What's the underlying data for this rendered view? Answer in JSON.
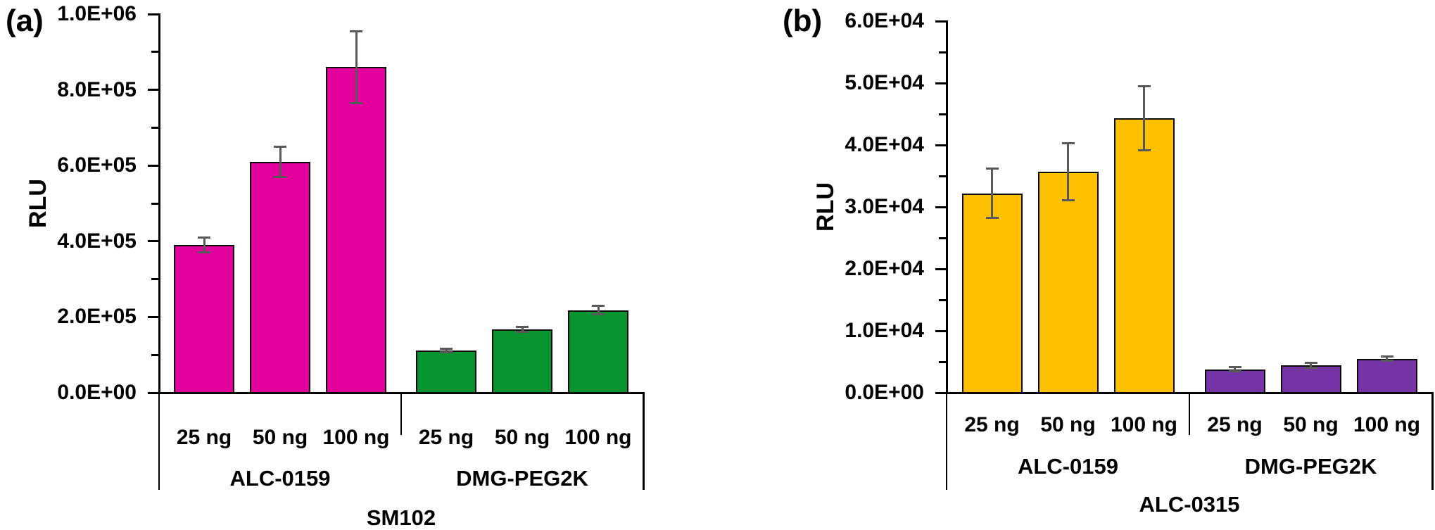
{
  "figure_title": "",
  "chart_data": [
    {
      "panel": "(a)",
      "type": "bar",
      "title": "SM102",
      "ylabel": "RLU",
      "ylim": [
        0,
        1000000
      ],
      "ytick_major": 200000,
      "ytick_minor": 100000,
      "ytick_labels": [
        "0.0E+00",
        "2.0E+05",
        "4.0E+05",
        "6.0E+05",
        "8.0E+05",
        "1.0E+06"
      ],
      "grid": false,
      "legend": "none",
      "group_labels": [
        "ALC-0159",
        "DMG-PEG2K"
      ],
      "categories": [
        "25 ng",
        "50 ng",
        "100 ng",
        "25 ng",
        "50 ng",
        "100 ng"
      ],
      "series": [
        {
          "name": "ALC-0159",
          "color": "#E4009C",
          "values": [
            390000,
            610000,
            860000
          ],
          "errors": [
            20000,
            40000,
            95000
          ]
        },
        {
          "name": "DMG-PEG2K",
          "color": "#089530",
          "values": [
            111000,
            167000,
            218000
          ],
          "errors": [
            5000,
            6000,
            11000
          ]
        }
      ]
    },
    {
      "panel": "(b)",
      "type": "bar",
      "title": "ALC-0315",
      "ylabel": "RLU",
      "ylim": [
        0,
        60000
      ],
      "ytick_major": 10000,
      "ytick_minor": 5000,
      "ytick_labels": [
        "0.0E+00",
        "1.0E+04",
        "2.0E+04",
        "3.0E+04",
        "4.0E+04",
        "5.0E+04",
        "6.0E+04"
      ],
      "grid": false,
      "legend": "none",
      "group_labels": [
        "ALC-0159",
        "DMG-PEG2K"
      ],
      "categories": [
        "25 ng",
        "50 ng",
        "100 ng",
        "25 ng",
        "50 ng",
        "100 ng"
      ],
      "series": [
        {
          "name": "ALC-0159",
          "color": "#FFC000",
          "values": [
            32200,
            35700,
            44300
          ],
          "errors": [
            4000,
            4600,
            5200
          ]
        },
        {
          "name": "DMG-PEG2K",
          "color": "#7533A6",
          "values": [
            3800,
            4400,
            5500
          ],
          "errors": [
            300,
            400,
            350
          ]
        }
      ]
    }
  ],
  "style_colors": {
    "error_bar": "#595959",
    "axis": "#000000",
    "text": "#000000",
    "background": "#ffffff"
  }
}
